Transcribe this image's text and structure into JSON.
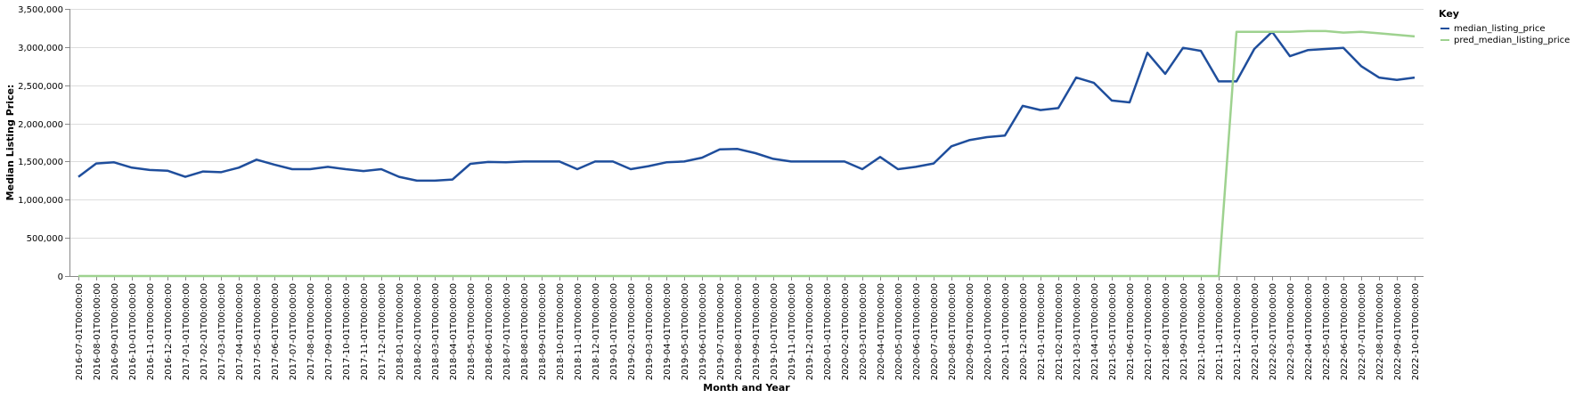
{
  "chart_data": {
    "type": "line",
    "xlabel": "Month and Year",
    "ylabel": "Median Listing Price:",
    "ylim": [
      0,
      3500000
    ],
    "yticks": [
      "0",
      "500,000",
      "1,000,000",
      "1,500,000",
      "2,000,000",
      "2,500,000",
      "3,000,000",
      "3,500,000"
    ],
    "grid": true,
    "legend": {
      "title": "Key",
      "placement": "top-right"
    },
    "x": [
      "2016-07-01T00:00:00",
      "2016-08-01T00:00:00",
      "2016-09-01T00:00:00",
      "2016-10-01T00:00:00",
      "2016-11-01T00:00:00",
      "2016-12-01T00:00:00",
      "2017-01-01T00:00:00",
      "2017-02-01T00:00:00",
      "2017-03-01T00:00:00",
      "2017-04-01T00:00:00",
      "2017-05-01T00:00:00",
      "2017-06-01T00:00:00",
      "2017-07-01T00:00:00",
      "2017-08-01T00:00:00",
      "2017-09-01T00:00:00",
      "2017-10-01T00:00:00",
      "2017-11-01T00:00:00",
      "2017-12-01T00:00:00",
      "2018-01-01T00:00:00",
      "2018-02-01T00:00:00",
      "2018-03-01T00:00:00",
      "2018-04-01T00:00:00",
      "2018-05-01T00:00:00",
      "2018-06-01T00:00:00",
      "2018-07-01T00:00:00",
      "2018-08-01T00:00:00",
      "2018-09-01T00:00:00",
      "2018-10-01T00:00:00",
      "2018-11-01T00:00:00",
      "2018-12-01T00:00:00",
      "2019-01-01T00:00:00",
      "2019-02-01T00:00:00",
      "2019-03-01T00:00:00",
      "2019-04-01T00:00:00",
      "2019-05-01T00:00:00",
      "2019-06-01T00:00:00",
      "2019-07-01T00:00:00",
      "2019-08-01T00:00:00",
      "2019-09-01T00:00:00",
      "2019-10-01T00:00:00",
      "2019-11-01T00:00:00",
      "2019-12-01T00:00:00",
      "2020-01-01T00:00:00",
      "2020-02-01T00:00:00",
      "2020-03-01T00:00:00",
      "2020-04-01T00:00:00",
      "2020-05-01T00:00:00",
      "2020-06-01T00:00:00",
      "2020-07-01T00:00:00",
      "2020-08-01T00:00:00",
      "2020-09-01T00:00:00",
      "2020-10-01T00:00:00",
      "2020-11-01T00:00:00",
      "2020-12-01T00:00:00",
      "2021-01-01T00:00:00",
      "2021-02-01T00:00:00",
      "2021-03-01T00:00:00",
      "2021-04-01T00:00:00",
      "2021-05-01T00:00:00",
      "2021-06-01T00:00:00",
      "2021-07-01T00:00:00",
      "2021-08-01T00:00:00",
      "2021-09-01T00:00:00",
      "2021-10-01T00:00:00",
      "2021-11-01T00:00:00",
      "2021-12-01T00:00:00",
      "2022-01-01T00:00:00",
      "2022-02-01T00:00:00",
      "2022-03-01T00:00:00",
      "2022-04-01T00:00:00",
      "2022-05-01T00:00:00",
      "2022-06-01T00:00:00",
      "2022-07-01T00:00:00",
      "2022-08-01T00:00:00",
      "2022-09-01T00:00:00",
      "2022-10-01T00:00:00"
    ],
    "series": [
      {
        "name": "median_listing_price",
        "color": "#1f4e9c",
        "values": [
          1300000,
          1475000,
          1490000,
          1420000,
          1390000,
          1380000,
          1300000,
          1370000,
          1360000,
          1420000,
          1525000,
          1460000,
          1400000,
          1400000,
          1430000,
          1400000,
          1375000,
          1400000,
          1300000,
          1250000,
          1250000,
          1265000,
          1470000,
          1495000,
          1490000,
          1500000,
          1500000,
          1500000,
          1400000,
          1500000,
          1500000,
          1400000,
          1440000,
          1490000,
          1500000,
          1550000,
          1660000,
          1665000,
          1610000,
          1535000,
          1500000,
          1500000,
          1500000,
          1500000,
          1400000,
          1560000,
          1400000,
          1430000,
          1475000,
          1700000,
          1780000,
          1820000,
          1840000,
          2230000,
          2175000,
          2200000,
          2600000,
          2530000,
          2300000,
          2275000,
          2925000,
          2650000,
          2990000,
          2950000,
          2550000,
          2550000,
          2975000,
          3200000,
          2880000,
          2960000,
          2975000,
          2990000,
          2750000,
          2600000,
          2570000,
          2600000
        ]
      },
      {
        "name": "pred_median_listing_price",
        "color": "#9ed28f",
        "values": [
          0,
          0,
          0,
          0,
          0,
          0,
          0,
          0,
          0,
          0,
          0,
          0,
          0,
          0,
          0,
          0,
          0,
          0,
          0,
          0,
          0,
          0,
          0,
          0,
          0,
          0,
          0,
          0,
          0,
          0,
          0,
          0,
          0,
          0,
          0,
          0,
          0,
          0,
          0,
          0,
          0,
          0,
          0,
          0,
          0,
          0,
          0,
          0,
          0,
          0,
          0,
          0,
          0,
          0,
          0,
          0,
          0,
          0,
          0,
          0,
          0,
          0,
          0,
          0,
          0,
          3200000,
          3200000,
          3200000,
          3200000,
          3210000,
          3210000,
          3190000,
          3200000,
          3180000,
          3160000,
          3140000
        ]
      }
    ]
  }
}
